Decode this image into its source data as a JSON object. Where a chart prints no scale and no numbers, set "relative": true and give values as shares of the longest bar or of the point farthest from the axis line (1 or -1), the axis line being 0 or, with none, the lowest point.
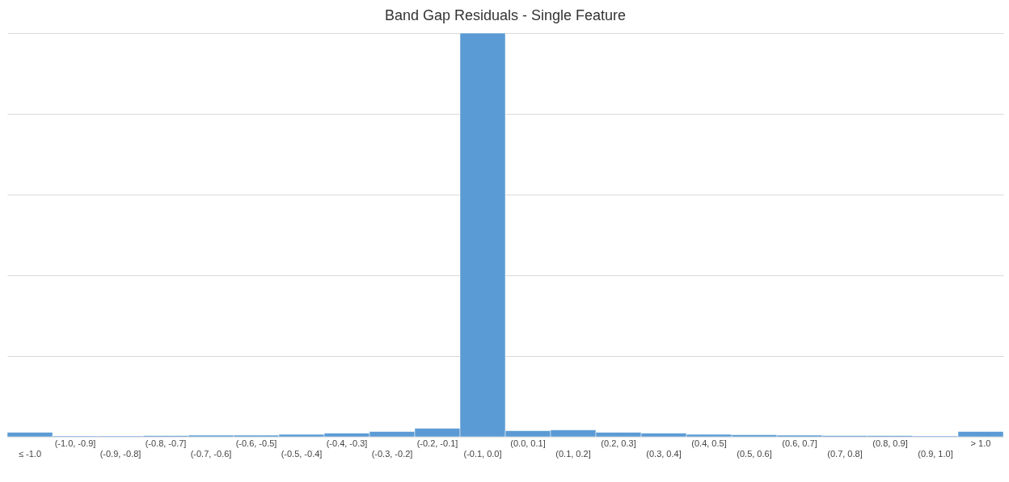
{
  "chart_data": {
    "type": "bar",
    "title": "Band Gap Residuals - Single Feature",
    "relative": true,
    "grid": "y",
    "color": "#5b9bd5",
    "categories": [
      "≤ -1.0",
      "(-1.0, -0.9]",
      "(-0.9, -0.8]",
      "(-0.8, -0.7]",
      "(-0.7, -0.6]",
      "(-0.6, -0.5]",
      "(-0.5, -0.4]",
      "(-0.4, -0.3]",
      "(-0.3, -0.2]",
      "(-0.2, -0.1]",
      "(-0.1, 0.0]",
      "(0.0, 0.1]",
      "(0.1, 0.2]",
      "(0.2, 0.3]",
      "(0.3, 0.4]",
      "(0.4, 0.5]",
      "(0.5, 0.6]",
      "(0.6, 0.7]",
      "(0.7, 0.8]",
      "(0.8, 0.9]",
      "(0.9, 1.0]",
      "> 1.0"
    ],
    "values": [
      0.011,
      0.002,
      0.002,
      0.003,
      0.004,
      0.004,
      0.006,
      0.009,
      0.013,
      0.021,
      1,
      0.015,
      0.017,
      0.011,
      0.009,
      0.006,
      0.005,
      0.004,
      0.003,
      0.003,
      0.002,
      0.013
    ]
  }
}
